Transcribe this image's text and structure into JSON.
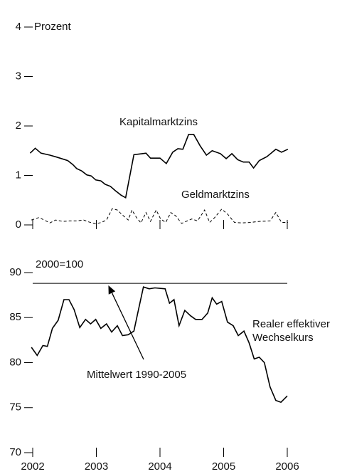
{
  "chart_data": [
    {
      "type": "line",
      "ylabel": "Prozent",
      "ylim": [
        0,
        4
      ],
      "yticks": [
        0,
        1,
        2,
        3,
        4
      ],
      "xlim": [
        2002,
        2006
      ],
      "xticks": [
        2002,
        2003,
        2004,
        2005,
        2006
      ],
      "series": [
        {
          "name": "Kapitalmarktzins",
          "color": "#000000",
          "dashed": false,
          "x": [
            2001.96,
            2002.04,
            2002.13,
            2002.27,
            2002.38,
            2002.55,
            2002.63,
            2002.69,
            2002.77,
            2002.85,
            2002.92,
            2002.99,
            2003.07,
            2003.14,
            2003.22,
            2003.3,
            2003.39,
            2003.46,
            2003.59,
            2003.72,
            2003.78,
            2003.85,
            2004.0,
            2004.1,
            2004.2,
            2004.28,
            2004.36,
            2004.45,
            2004.53,
            2004.63,
            2004.73,
            2004.82,
            2004.95,
            2005.04,
            2005.13,
            2005.22,
            2005.31,
            2005.4,
            2005.47,
            2005.56,
            2005.68,
            2005.82,
            2005.91,
            2006.01
          ],
          "values": [
            1.45,
            1.55,
            1.45,
            1.41,
            1.37,
            1.3,
            1.22,
            1.14,
            1.09,
            1.01,
            0.99,
            0.91,
            0.89,
            0.82,
            0.78,
            0.69,
            0.6,
            0.55,
            1.42,
            1.44,
            1.45,
            1.35,
            1.35,
            1.24,
            1.47,
            1.54,
            1.53,
            1.83,
            1.83,
            1.6,
            1.41,
            1.5,
            1.44,
            1.34,
            1.44,
            1.32,
            1.27,
            1.27,
            1.15,
            1.3,
            1.38,
            1.53,
            1.47,
            1.53
          ]
        },
        {
          "name": "Geldmarktzins",
          "color": "#000000",
          "dashed": true,
          "x": [
            2001.98,
            2002.1,
            2002.18,
            2002.27,
            2002.36,
            2002.47,
            2002.58,
            2002.69,
            2002.8,
            2002.88,
            2002.99,
            2003.08,
            2003.16,
            2003.25,
            2003.33,
            2003.41,
            2003.5,
            2003.56,
            2003.63,
            2003.7,
            2003.78,
            2003.85,
            2003.94,
            2004.01,
            2004.09,
            2004.17,
            2004.25,
            2004.34,
            2004.41,
            2004.5,
            2004.59,
            2004.7,
            2004.78,
            2004.86,
            2004.97,
            2005.06,
            2005.17,
            2005.28,
            2005.42,
            2005.56,
            2005.73,
            2005.82,
            2005.91,
            2006.01
          ],
          "values": [
            0.1,
            0.15,
            0.1,
            0.04,
            0.1,
            0.07,
            0.08,
            0.08,
            0.1,
            0.06,
            0.02,
            0.05,
            0.1,
            0.33,
            0.3,
            0.2,
            0.1,
            0.3,
            0.15,
            0.04,
            0.25,
            0.07,
            0.3,
            0.12,
            0.05,
            0.25,
            0.18,
            0.03,
            0.07,
            0.12,
            0.08,
            0.3,
            0.05,
            0.15,
            0.32,
            0.22,
            0.05,
            0.04,
            0.05,
            0.07,
            0.08,
            0.25,
            0.05,
            0.05
          ]
        }
      ]
    },
    {
      "type": "line",
      "ylabel": "2000=100",
      "ylim": [
        70,
        90
      ],
      "yticks": [
        70,
        75,
        80,
        85,
        90
      ],
      "xlim": [
        2002,
        2006
      ],
      "xticks": [
        2002,
        2003,
        2004,
        2005,
        2006
      ],
      "reference": {
        "label": "Mittelwert 1990-2005",
        "value": 88.8
      },
      "series": [
        {
          "name": "Realer effektiver Wechselkurs",
          "color": "#000000",
          "dashed": false,
          "x": [
            2001.98,
            2002.07,
            2002.16,
            2002.23,
            2002.31,
            2002.4,
            2002.49,
            2002.57,
            2002.65,
            2002.74,
            2002.83,
            2002.91,
            2002.99,
            2003.07,
            2003.16,
            2003.24,
            2003.33,
            2003.41,
            2003.5,
            2003.59,
            2003.65,
            2003.74,
            2003.83,
            2003.92,
            2004.08,
            2004.15,
            2004.22,
            2004.3,
            2004.39,
            2004.48,
            2004.56,
            2004.66,
            2004.75,
            2004.82,
            2004.89,
            2004.97,
            2005.06,
            2005.15,
            2005.23,
            2005.32,
            2005.4,
            2005.48,
            2005.56,
            2005.64,
            2005.73,
            2005.82,
            2005.9,
            2006.0
          ],
          "values": [
            81.7,
            80.8,
            81.9,
            81.8,
            83.8,
            84.7,
            87.0,
            87.0,
            85.9,
            83.9,
            84.8,
            84.3,
            84.8,
            83.8,
            84.3,
            83.4,
            84.1,
            83.0,
            83.1,
            83.5,
            85.5,
            88.4,
            88.2,
            88.3,
            88.2,
            86.6,
            87.0,
            84.1,
            85.8,
            85.2,
            84.8,
            84.8,
            85.5,
            87.2,
            86.5,
            86.8,
            84.5,
            84.1,
            83.0,
            83.5,
            82.2,
            80.4,
            80.6,
            80.0,
            77.3,
            75.8,
            75.6,
            76.3
          ]
        }
      ]
    }
  ]
}
